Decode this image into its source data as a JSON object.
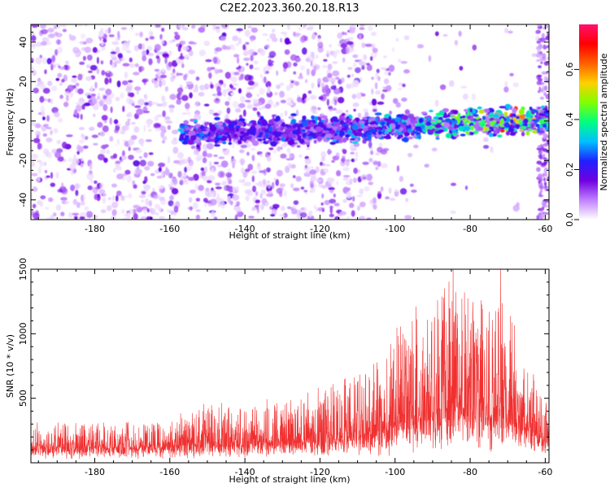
{
  "title": "C2E2.2023.360.20.18.R13",
  "colors": {
    "snr_trace": "#f03030",
    "frame": "#000000",
    "background": "#ffffff"
  },
  "chart_data": [
    {
      "type": "heatmap",
      "xlabel": "Height of straight line (km)",
      "ylabel": "Frequency (Hz)",
      "xlim": [
        -197,
        -59
      ],
      "ylim": [
        -50,
        49
      ],
      "xticks": [
        -180,
        -160,
        -140,
        -120,
        -100,
        -80,
        -60
      ],
      "yticks": [
        -40,
        -20,
        0,
        20,
        40
      ],
      "colorbar": {
        "label": "Normalized spectral amplitude",
        "range": [
          0,
          0.78
        ],
        "ticks": [
          0.0,
          0.2,
          0.4,
          0.6
        ],
        "tick_labels": [
          "0.0",
          "0.2",
          "0.4",
          "0.6"
        ],
        "colormap": [
          "#ffffff",
          "#c080ff",
          "#7000e0",
          "#2020ff",
          "#00c0ff",
          "#00ff80",
          "#80ff00",
          "#ffd000",
          "#ff6000",
          "#ff0000",
          "#ff1070"
        ]
      },
      "band": {
        "center_hz": [
          {
            "x": -155,
            "y": -6
          },
          {
            "x": -140,
            "y": -5
          },
          {
            "x": -120,
            "y": -5
          },
          {
            "x": -100,
            "y": -3
          },
          {
            "x": -80,
            "y": -1
          },
          {
            "x": -60,
            "y": 0
          }
        ],
        "peak_amplitude": [
          {
            "x": -155,
            "y": 0.25
          },
          {
            "x": -140,
            "y": 0.18
          },
          {
            "x": -120,
            "y": 0.22
          },
          {
            "x": -100,
            "y": 0.3
          },
          {
            "x": -80,
            "y": 0.45
          },
          {
            "x": -70,
            "y": 0.65
          },
          {
            "x": -60,
            "y": 0.4
          }
        ]
      }
    },
    {
      "type": "line",
      "xlabel": "Height of straight line (km)",
      "ylabel": "SNR (10 * v/v)",
      "xlim": [
        -197,
        -59
      ],
      "ylim": [
        0,
        1500
      ],
      "xticks": [
        -180,
        -160,
        -140,
        -120,
        -100,
        -80,
        -60
      ],
      "yticks": [
        500,
        1000,
        1500
      ],
      "series": [
        {
          "envelope": [
            {
              "x": -197,
              "y": 300
            },
            {
              "x": -180,
              "y": 300
            },
            {
              "x": -160,
              "y": 320
            },
            {
              "x": -150,
              "y": 480
            },
            {
              "x": -140,
              "y": 420
            },
            {
              "x": -120,
              "y": 550
            },
            {
              "x": -110,
              "y": 650
            },
            {
              "x": -105,
              "y": 780
            },
            {
              "x": -100,
              "y": 1050
            },
            {
              "x": -95,
              "y": 1150
            },
            {
              "x": -90,
              "y": 1250
            },
            {
              "x": -85,
              "y": 1450
            },
            {
              "x": -80,
              "y": 1380
            },
            {
              "x": -75,
              "y": 1200
            },
            {
              "x": -72,
              "y": 1500
            },
            {
              "x": -68,
              "y": 1100
            },
            {
              "x": -65,
              "y": 800
            },
            {
              "x": -62,
              "y": 650
            },
            {
              "x": -59,
              "y": 400
            }
          ],
          "baseline": [
            {
              "x": -197,
              "y": 150
            },
            {
              "x": -160,
              "y": 170
            },
            {
              "x": -140,
              "y": 190
            },
            {
              "x": -120,
              "y": 200
            },
            {
              "x": -105,
              "y": 250
            },
            {
              "x": -100,
              "y": 300
            },
            {
              "x": -90,
              "y": 400
            },
            {
              "x": -80,
              "y": 430
            },
            {
              "x": -70,
              "y": 380
            },
            {
              "x": -59,
              "y": 200
            }
          ]
        }
      ]
    }
  ]
}
